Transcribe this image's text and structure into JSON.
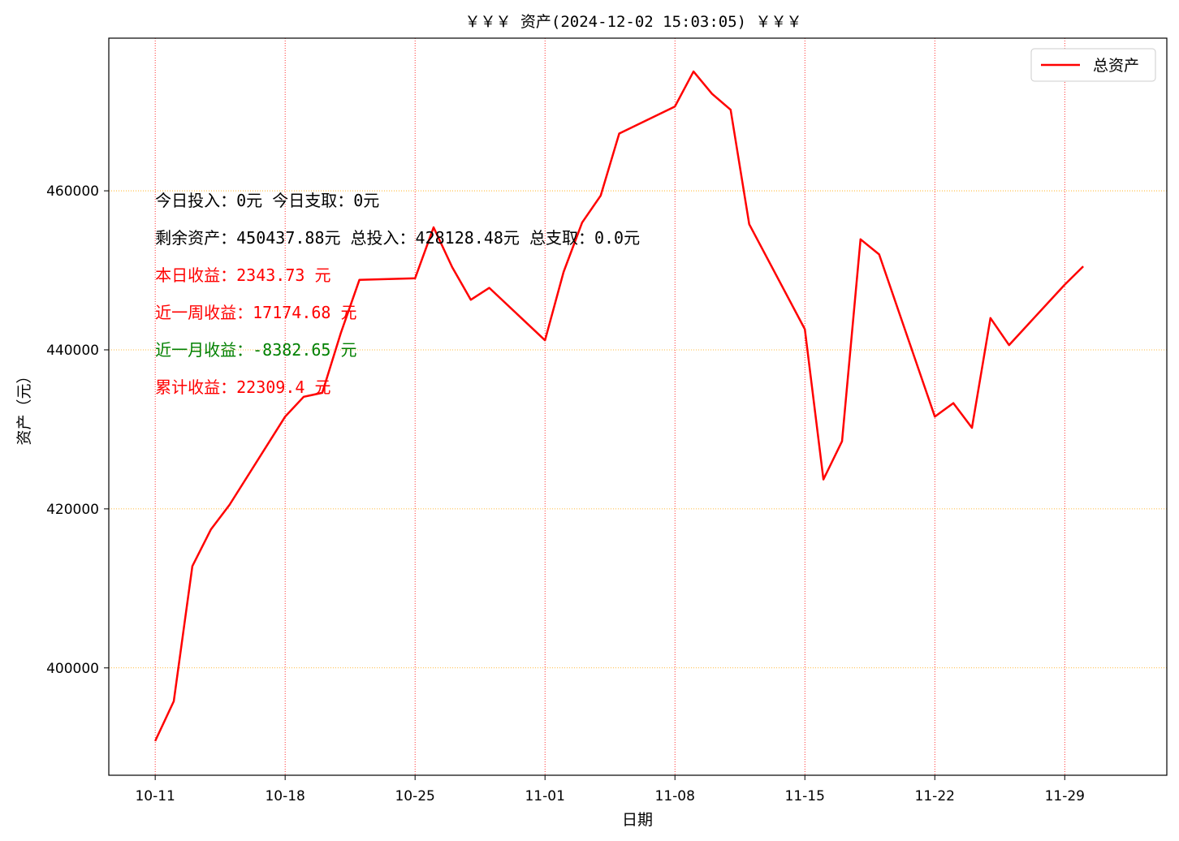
{
  "chart_data": {
    "type": "line",
    "title": "￥￥￥ 资产(2024-12-02 15:03:05) ￥￥￥",
    "xlabel": "日期",
    "ylabel": "资产（元）",
    "x_tick_labels": [
      "10-11",
      "10-18",
      "10-25",
      "11-01",
      "11-08",
      "11-15",
      "11-22",
      "11-29"
    ],
    "y_tick_labels": [
      "400000",
      "420000",
      "440000",
      "460000"
    ],
    "y_ticks": [
      400000,
      420000,
      440000,
      460000
    ],
    "xlim": [
      "2024-10-08 12:00",
      "2024-12-04 12:00"
    ],
    "ylim": [
      386500,
      479200
    ],
    "grid": true,
    "legend_position": "top-right",
    "series": [
      {
        "name": "总资产",
        "color": "#ff0000",
        "points": [
          [
            "2024-10-11",
            390800
          ],
          [
            "2024-10-12",
            395800
          ],
          [
            "2024-10-13",
            412800
          ],
          [
            "2024-10-14",
            417400
          ],
          [
            "2024-10-15",
            420500
          ],
          [
            "2024-10-18",
            431600
          ],
          [
            "2024-10-19",
            434100
          ],
          [
            "2024-10-20",
            434600
          ],
          [
            "2024-10-21",
            442100
          ],
          [
            "2024-10-22",
            448800
          ],
          [
            "2024-10-25",
            449000
          ],
          [
            "2024-10-26",
            455400
          ],
          [
            "2024-10-27",
            450400
          ],
          [
            "2024-10-28",
            446300
          ],
          [
            "2024-10-29",
            447800
          ],
          [
            "2024-11-01",
            441200
          ],
          [
            "2024-11-02",
            449800
          ],
          [
            "2024-11-03",
            456000
          ],
          [
            "2024-11-04",
            459400
          ],
          [
            "2024-11-05",
            467200
          ],
          [
            "2024-11-08",
            470600
          ],
          [
            "2024-11-09",
            475000
          ],
          [
            "2024-11-10",
            472200
          ],
          [
            "2024-11-11",
            470200
          ],
          [
            "2024-11-12",
            455800
          ],
          [
            "2024-11-15",
            442600
          ],
          [
            "2024-11-16",
            423700
          ],
          [
            "2024-11-17",
            428500
          ],
          [
            "2024-11-18",
            453900
          ],
          [
            "2024-11-19",
            452000
          ],
          [
            "2024-11-22",
            431600
          ],
          [
            "2024-11-23",
            433300
          ],
          [
            "2024-11-24",
            430200
          ],
          [
            "2024-11-25",
            444000
          ],
          [
            "2024-11-26",
            440600
          ],
          [
            "2024-11-29",
            448200
          ],
          [
            "2024-11-30",
            450500
          ]
        ]
      }
    ],
    "annotations": [
      {
        "text": "今日投入：0元 今日支取：0元",
        "color": "#000000"
      },
      {
        "text": "剩余资产：450437.88元 总投入：428128.48元  总支取：0.0元",
        "color": "#000000"
      },
      {
        "text": "本日收益：2343.73 元",
        "color": "#ff0000"
      },
      {
        "text": "近一周收益：17174.68 元",
        "color": "#ff0000"
      },
      {
        "text": "近一月收益：-8382.65 元",
        "color": "#008000"
      },
      {
        "text": "累计收益：22309.4 元",
        "color": "#ff0000"
      }
    ]
  }
}
